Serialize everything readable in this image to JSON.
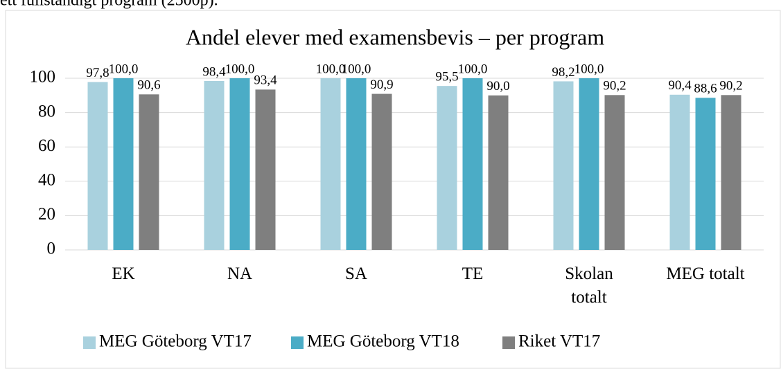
{
  "context_text": "ett fullständigt program (2500p).",
  "chart_data": {
    "type": "bar",
    "title": "Andel elever med examensbevis – per program",
    "categories": [
      "EK",
      "NA",
      "SA",
      "TE",
      "Skolan totalt",
      "MEG totalt"
    ],
    "series": [
      {
        "name": "MEG Göteborg VT17",
        "color": "#a9d1de",
        "values": [
          97.8,
          98.4,
          100,
          95.5,
          98.2,
          90.4
        ],
        "value_labels": [
          "97,8",
          "98,4",
          "100,0",
          "95,5",
          "98,2",
          "90,4"
        ]
      },
      {
        "name": "MEG Göteborg VT18",
        "color": "#4bacc6",
        "values": [
          100,
          100,
          100,
          100,
          100,
          88.6
        ],
        "value_labels": [
          "100,0",
          "100,0",
          "100,0",
          "100,0",
          "100,0",
          "88,6"
        ]
      },
      {
        "name": "Riket VT17",
        "color": "#7f7f7f",
        "values": [
          90.6,
          93.4,
          90.9,
          90.0,
          90.2,
          90.2
        ],
        "value_labels": [
          "90,6",
          "93,4",
          "90,9",
          "90,0",
          "90,2",
          "90,2"
        ]
      }
    ],
    "ylim": [
      0,
      100
    ],
    "yticks": [
      0,
      20,
      40,
      60,
      80,
      100
    ],
    "grid": true,
    "legend": "bottom"
  }
}
